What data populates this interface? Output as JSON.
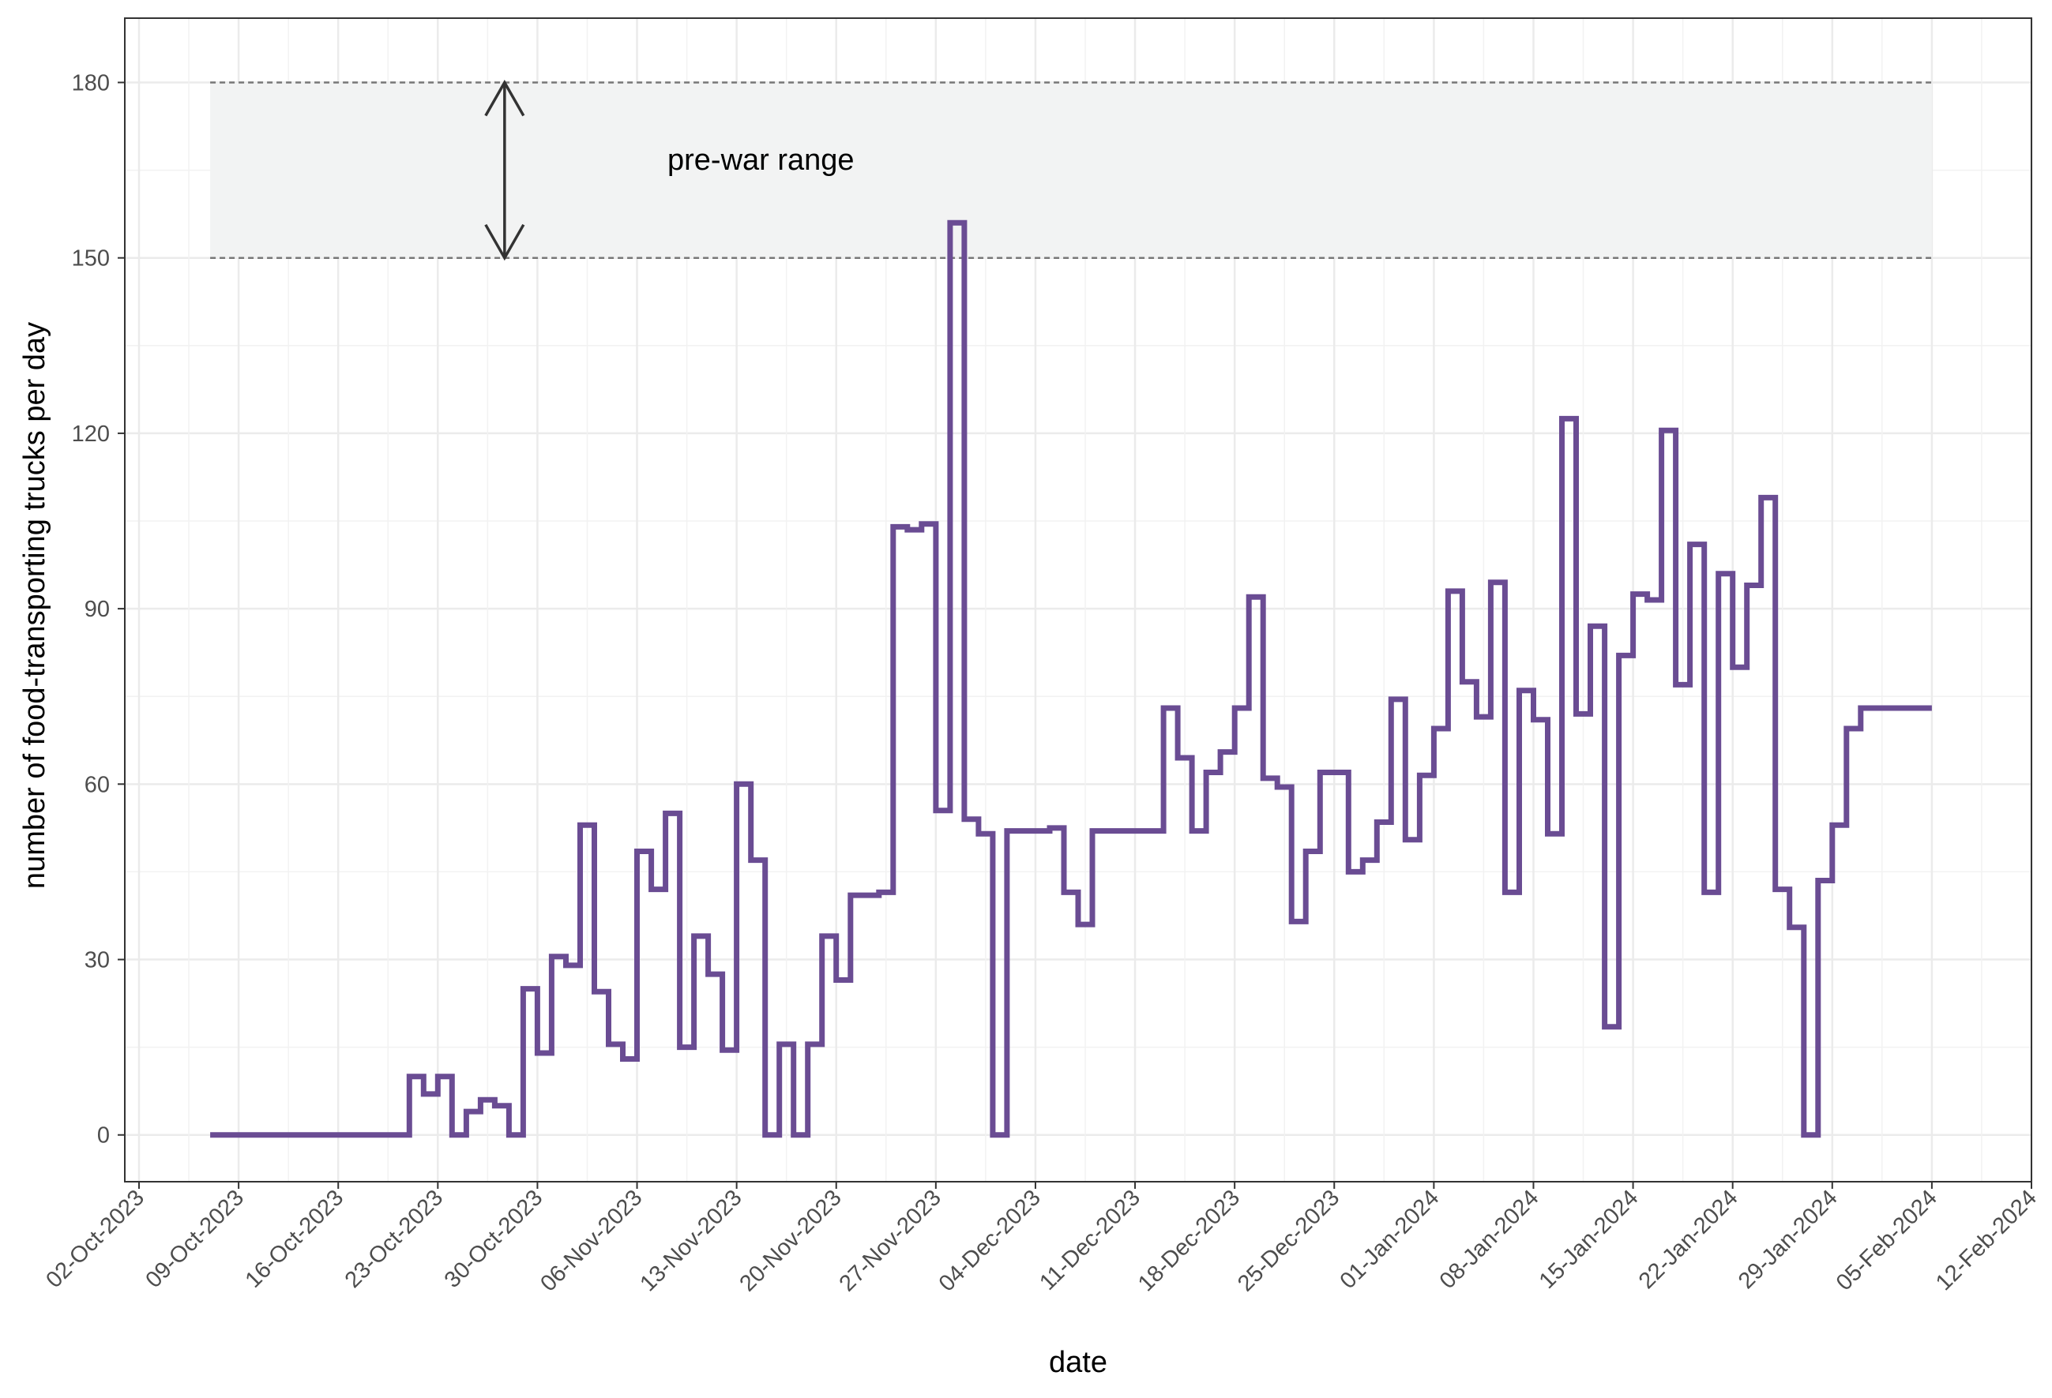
{
  "chart_data": {
    "type": "line",
    "step": true,
    "title": "",
    "xlabel": "date",
    "ylabel": "number of food-transporting trucks per day",
    "x_ticks": [
      "02-Oct-2023",
      "09-Oct-2023",
      "16-Oct-2023",
      "23-Oct-2023",
      "30-Oct-2023",
      "06-Nov-2023",
      "13-Nov-2023",
      "20-Nov-2023",
      "27-Nov-2023",
      "04-Dec-2023",
      "11-Dec-2023",
      "18-Dec-2023",
      "25-Dec-2023",
      "01-Jan-2024",
      "08-Jan-2024",
      "15-Jan-2024",
      "22-Jan-2024",
      "29-Jan-2024",
      "05-Feb-2024",
      "12-Feb-2024"
    ],
    "y_ticks": [
      0,
      30,
      60,
      90,
      120,
      150,
      180
    ],
    "xlim": [
      "2023-10-01",
      "2024-02-12"
    ],
    "ylim": [
      -8,
      191
    ],
    "grid": true,
    "colors": {
      "series": "#6a4c93",
      "band": "#f2f3f3",
      "band_line": "#777777",
      "arrow": "#333333"
    },
    "reference_band": {
      "label": "pre-war range",
      "ymin": 150,
      "ymax": 180,
      "xstart": "2023-10-07",
      "xend": "2024-02-05"
    },
    "series": [
      {
        "points": [
          [
            "2023-10-07",
            0
          ],
          [
            "2023-10-21",
            10
          ],
          [
            "2023-10-22",
            7
          ],
          [
            "2023-10-23",
            10
          ],
          [
            "2023-10-24",
            0
          ],
          [
            "2023-10-25",
            4
          ],
          [
            "2023-10-26",
            6
          ],
          [
            "2023-10-27",
            5
          ],
          [
            "2023-10-28",
            0
          ],
          [
            "2023-10-29",
            25
          ],
          [
            "2023-10-30",
            14
          ],
          [
            "2023-10-31",
            30.5
          ],
          [
            "2023-11-01",
            29
          ],
          [
            "2023-11-02",
            53
          ],
          [
            "2023-11-03",
            24.5
          ],
          [
            "2023-11-04",
            15.5
          ],
          [
            "2023-11-05",
            13
          ],
          [
            "2023-11-06",
            48.5
          ],
          [
            "2023-11-07",
            42
          ],
          [
            "2023-11-08",
            55
          ],
          [
            "2023-11-09",
            15
          ],
          [
            "2023-11-10",
            34
          ],
          [
            "2023-11-11",
            27.5
          ],
          [
            "2023-11-12",
            14.5
          ],
          [
            "2023-11-13",
            60
          ],
          [
            "2023-11-14",
            47
          ],
          [
            "2023-11-15",
            0
          ],
          [
            "2023-11-16",
            15.5
          ],
          [
            "2023-11-17",
            0
          ],
          [
            "2023-11-18",
            15.5
          ],
          [
            "2023-11-19",
            34
          ],
          [
            "2023-11-20",
            26.5
          ],
          [
            "2023-11-21",
            41
          ],
          [
            "2023-11-23",
            41.5
          ],
          [
            "2023-11-24",
            104
          ],
          [
            "2023-11-25",
            103.5
          ],
          [
            "2023-11-26",
            104.5
          ],
          [
            "2023-11-27",
            55.5
          ],
          [
            "2023-11-28",
            156
          ],
          [
            "2023-11-29",
            54
          ],
          [
            "2023-11-30",
            51.5
          ],
          [
            "2023-12-01",
            0
          ],
          [
            "2023-12-02",
            52
          ],
          [
            "2023-12-05",
            52.5
          ],
          [
            "2023-12-06",
            41.5
          ],
          [
            "2023-12-07",
            36
          ],
          [
            "2023-12-08",
            52
          ],
          [
            "2023-12-13",
            73
          ],
          [
            "2023-12-14",
            64.5
          ],
          [
            "2023-12-15",
            52
          ],
          [
            "2023-12-16",
            62
          ],
          [
            "2023-12-17",
            65.5
          ],
          [
            "2023-12-18",
            73
          ],
          [
            "2023-12-19",
            92
          ],
          [
            "2023-12-20",
            61
          ],
          [
            "2023-12-21",
            59.5
          ],
          [
            "2023-12-22",
            36.5
          ],
          [
            "2023-12-23",
            48.5
          ],
          [
            "2023-12-24",
            62
          ],
          [
            "2023-12-26",
            45
          ],
          [
            "2023-12-27",
            47
          ],
          [
            "2023-12-28",
            53.5
          ],
          [
            "2023-12-29",
            74.5
          ],
          [
            "2023-12-30",
            50.5
          ],
          [
            "2023-12-31",
            61.5
          ],
          [
            "2024-01-01",
            69.5
          ],
          [
            "2024-01-02",
            93
          ],
          [
            "2024-01-03",
            77.5
          ],
          [
            "2024-01-04",
            71.5
          ],
          [
            "2024-01-05",
            94.5
          ],
          [
            "2024-01-06",
            41.5
          ],
          [
            "2024-01-07",
            76
          ],
          [
            "2024-01-08",
            71
          ],
          [
            "2024-01-09",
            51.5
          ],
          [
            "2024-01-10",
            122.5
          ],
          [
            "2024-01-11",
            72
          ],
          [
            "2024-01-12",
            87
          ],
          [
            "2024-01-13",
            18.5
          ],
          [
            "2024-01-14",
            82
          ],
          [
            "2024-01-15",
            92.5
          ],
          [
            "2024-01-16",
            91.5
          ],
          [
            "2024-01-17",
            120.5
          ],
          [
            "2024-01-18",
            77
          ],
          [
            "2024-01-19",
            101
          ],
          [
            "2024-01-20",
            41.5
          ],
          [
            "2024-01-21",
            96
          ],
          [
            "2024-01-22",
            80
          ],
          [
            "2024-01-23",
            94
          ],
          [
            "2024-01-24",
            109
          ],
          [
            "2024-01-25",
            42
          ],
          [
            "2024-01-26",
            35.5
          ],
          [
            "2024-01-27",
            0
          ],
          [
            "2024-01-28",
            43.5
          ],
          [
            "2024-01-29",
            53
          ],
          [
            "2024-01-30",
            69.5
          ],
          [
            "2024-01-31",
            73
          ],
          [
            "2024-02-05",
            73
          ]
        ]
      }
    ]
  }
}
